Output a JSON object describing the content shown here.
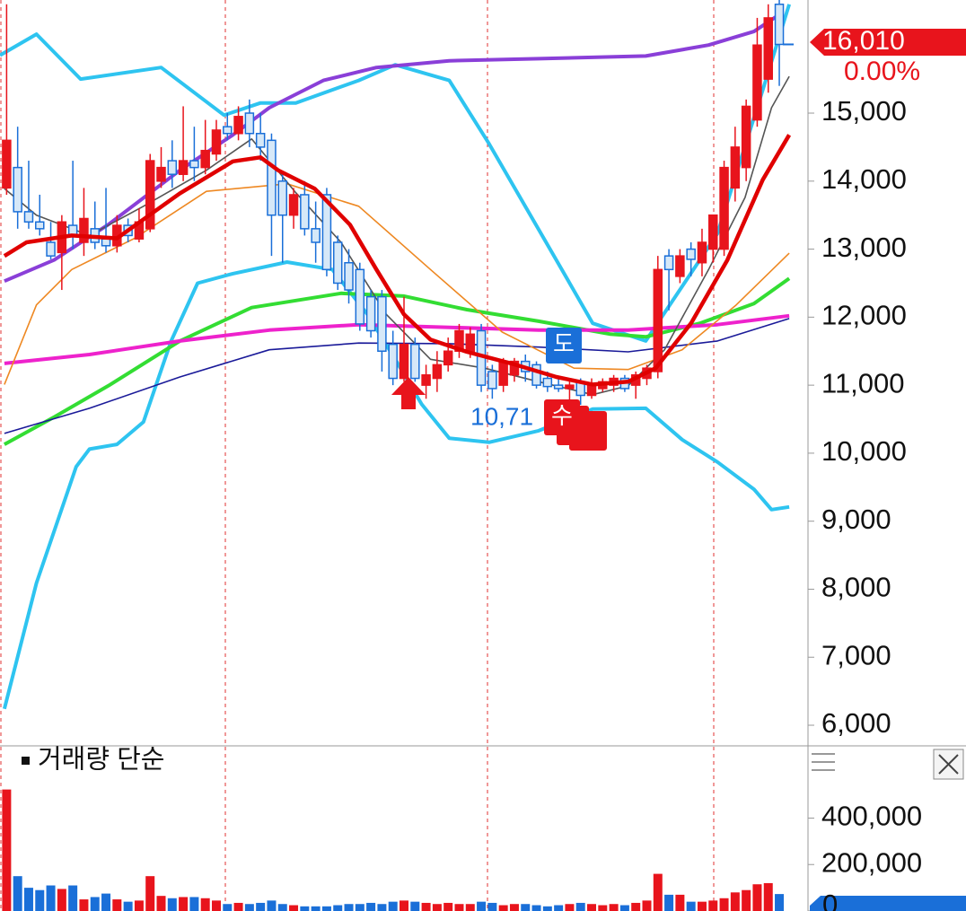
{
  "chart_data": [
    {
      "type": "candlestick",
      "xlim": [
        -0.6,
        72.6
      ],
      "ylim": [
        5710,
        16663
      ],
      "yticks": [
        {
          "value": 6000,
          "label": "6,000"
        },
        {
          "value": 7000,
          "label": "7,000"
        },
        {
          "value": 8000,
          "label": "8,000"
        },
        {
          "value": 9000,
          "label": "9,000"
        },
        {
          "value": 10000,
          "label": "10,000"
        },
        {
          "value": 11000,
          "label": "11,000"
        },
        {
          "value": 12000,
          "label": "12,000"
        },
        {
          "value": 13000,
          "label": "13,000"
        },
        {
          "value": 14000,
          "label": "14,000"
        },
        {
          "value": 15000,
          "label": "15,000"
        }
      ],
      "up_color": "#e8141c",
      "down_color": "#1a6fd8",
      "open": [
        13900,
        14200,
        13550,
        13400,
        13100,
        12950,
        13350,
        13100,
        13300,
        13150,
        13050,
        13350,
        13150,
        13300,
        14000,
        14300,
        14100,
        14300,
        14200,
        14400,
        14800,
        14700,
        15000,
        14700,
        14600,
        14000,
        13500,
        13800,
        13300,
        13800,
        13100,
        12800,
        12700,
        12300,
        12300,
        11600,
        11100,
        11600,
        11000,
        11100,
        11300,
        11500,
        11500,
        11800,
        11200,
        11000,
        11150,
        11350,
        11300,
        11100,
        11000,
        10950,
        11050,
        10850,
        10950,
        11000,
        11100,
        11000,
        11100,
        11200,
        12900,
        12600,
        13000,
        12800,
        13000,
        13000,
        13900,
        14200,
        14900,
        15500,
        16600
      ],
      "high": [
        16600,
        14800,
        14300,
        13800,
        13400,
        13500,
        14300,
        13900,
        13700,
        13900,
        13500,
        13450,
        13600,
        14400,
        14500,
        14600,
        15100,
        14800,
        14900,
        14900,
        15000,
        15100,
        15200,
        15000,
        14700,
        14100,
        13900,
        14000,
        13700,
        13900,
        13200,
        13000,
        12800,
        12400,
        12400,
        11800,
        12300,
        11700,
        11300,
        11500,
        11700,
        11900,
        11850,
        11900,
        11300,
        11400,
        11400,
        11450,
        11350,
        11200,
        11100,
        11100,
        11100,
        11100,
        11100,
        11150,
        11150,
        11200,
        11300,
        12900,
        13000,
        13000,
        13100,
        13300,
        13500,
        14300,
        14800,
        15200,
        16400,
        16600,
        16700
      ],
      "low": [
        13800,
        13300,
        13300,
        13200,
        12850,
        12400,
        13000,
        12900,
        13000,
        12950,
        12950,
        13100,
        13100,
        13250,
        13900,
        13900,
        14000,
        14000,
        14100,
        14300,
        14600,
        14600,
        14500,
        14300,
        12900,
        12800,
        13300,
        13200,
        12800,
        12600,
        12400,
        12200,
        11800,
        11700,
        11200,
        11000,
        11050,
        11050,
        10800,
        10900,
        11200,
        11400,
        11400,
        10900,
        10800,
        10900,
        11050,
        11050,
        10950,
        10900,
        10900,
        10750,
        10710,
        10800,
        10900,
        10900,
        10900,
        10800,
        11000,
        11100,
        12100,
        12500,
        12600,
        12600,
        12800,
        12900,
        13700,
        14000,
        14800,
        15300,
        15400
      ],
      "close": [
        14600,
        13550,
        13400,
        13300,
        12900,
        13400,
        13200,
        13450,
        13100,
        13050,
        13350,
        13200,
        13400,
        14300,
        14200,
        14100,
        14300,
        14200,
        14450,
        14750,
        14700,
        14950,
        14700,
        14500,
        13500,
        13500,
        13800,
        13300,
        13100,
        12700,
        12500,
        12400,
        11900,
        11800,
        11500,
        11100,
        11600,
        11100,
        11150,
        11300,
        11500,
        11800,
        11750,
        11000,
        10950,
        11350,
        11350,
        11200,
        11000,
        10980,
        10950,
        11000,
        10850,
        11000,
        11050,
        11100,
        10950,
        11150,
        11250,
        12700,
        12700,
        12900,
        12850,
        13100,
        13500,
        14200,
        14500,
        15100,
        16000,
        16400,
        16010
      ],
      "lines": [
        {
          "color": "#2ec4f0",
          "width": 4,
          "x": [
            -0.6,
            2.7,
            6.7,
            14,
            19.7,
            23,
            26.2,
            31.9,
            35.2,
            40.1,
            43.7,
            49.8,
            53.1,
            57.9,
            64.4,
            68.5,
            70.9
          ],
          "values": [
            15850,
            16160,
            15500,
            15670,
            14970,
            15150,
            15150,
            15480,
            15710,
            15480,
            14550,
            12840,
            11910,
            11650,
            13230,
            15340,
            16600
          ]
        },
        {
          "color": "#2ec4f0",
          "width": 4,
          "x": [
            -0.2,
            2.7,
            6.3,
            7.5,
            10,
            12.4,
            14.9,
            17.3,
            20.5,
            25.4,
            29.5,
            32.7,
            35.2,
            37.6,
            40.1,
            43.7,
            48.2,
            53.1,
            57.9,
            61.2,
            64.4,
            67.7,
            69.3,
            70.9
          ],
          "values": [
            6240,
            8090,
            9800,
            10060,
            10130,
            10460,
            11650,
            12500,
            12640,
            12810,
            12700,
            12040,
            11380,
            10720,
            10220,
            10160,
            10330,
            10650,
            10660,
            10200,
            9870,
            9470,
            9170,
            9210
          ]
        },
        {
          "color": "#8a3fd8",
          "width": 4,
          "x": [
            -0.2,
            4.3,
            9.2,
            15.7,
            20.5,
            23.8,
            28.7,
            33.5,
            40.1,
            48.2,
            57.9,
            63.6,
            67.7,
            70.1
          ],
          "values": [
            12530,
            12840,
            13360,
            14160,
            14680,
            15080,
            15480,
            15670,
            15770,
            15800,
            15840,
            16000,
            16200,
            16460
          ]
        },
        {
          "color": "#33dd33",
          "width": 4,
          "x": [
            -0.2,
            4.3,
            9.2,
            15.7,
            22.2,
            30.3,
            36,
            41.7,
            48.2,
            54.7,
            57.9,
            62.8,
            67.7,
            70.9
          ],
          "values": [
            10130,
            10530,
            10990,
            11650,
            12140,
            12350,
            12310,
            12110,
            11940,
            11750,
            11710,
            11910,
            12200,
            12570
          ]
        },
        {
          "color": "#ee22cc",
          "width": 4,
          "x": [
            -0.2,
            7.5,
            15.7,
            23.8,
            31.9,
            40.1,
            48.2,
            56.3,
            64.4,
            70.9
          ],
          "values": [
            11320,
            11450,
            11650,
            11810,
            11890,
            11850,
            11810,
            11810,
            11890,
            12020
          ]
        },
        {
          "color": "#1a1a99",
          "width": 1.6,
          "x": [
            -0.2,
            7.5,
            15.7,
            23.8,
            31.9,
            40.1,
            48.2,
            56.3,
            64.4,
            70.9
          ],
          "values": [
            10290,
            10660,
            11120,
            11520,
            11620,
            11610,
            11560,
            11490,
            11650,
            11980
          ]
        },
        {
          "color": "#ee8822",
          "width": 1.6,
          "x": [
            -0.2,
            2.7,
            5.9,
            11.6,
            18.1,
            25.4,
            31.9,
            38.4,
            44.9,
            51.4,
            56.3,
            61.2,
            66.1,
            70.9
          ],
          "values": [
            11010,
            12180,
            12700,
            13160,
            13850,
            13960,
            13630,
            12700,
            11780,
            11250,
            11230,
            11520,
            12180,
            12940
          ]
        },
        {
          "color": "#555555",
          "width": 1.6,
          "x": [
            -0.2,
            2.7,
            7.5,
            12.4,
            18.1,
            22.2,
            26.2,
            30.3,
            34.4,
            38.4,
            43.3,
            48.2,
            53.1,
            56.3,
            59.6,
            63.6,
            66.9,
            69.3,
            70.9
          ],
          "values": [
            13890,
            13500,
            13200,
            13630,
            14160,
            14620,
            13830,
            13100,
            12040,
            11380,
            11250,
            11050,
            10860,
            10990,
            11520,
            12700,
            13760,
            15080,
            15540
          ]
        },
        {
          "color": "#e00000",
          "width": 4.5,
          "x": [
            -0.2,
            1.8,
            5.9,
            10,
            15.7,
            20.5,
            23,
            24.6,
            27.9,
            31.1,
            33.5,
            36,
            38.4,
            41.7,
            45.7,
            49.8,
            53.1,
            56.3,
            58.8,
            62,
            65.3,
            68.5,
            70.9
          ],
          "values": [
            12900,
            13100,
            13200,
            13160,
            13820,
            14290,
            14350,
            14160,
            13890,
            13360,
            12700,
            12040,
            11670,
            11490,
            11320,
            11120,
            11010,
            11050,
            11250,
            11910,
            12840,
            14020,
            14680
          ]
        }
      ],
      "last_price": {
        "value": 16010,
        "label": "16,010"
      },
      "change": {
        "value": 0,
        "label": "0.00%"
      },
      "annotations": [
        "도",
        "수",
        "10,71"
      ]
    },
    {
      "type": "bar",
      "title": "거래량 단순",
      "ylim": [
        0,
        707000
      ],
      "yticks": [
        {
          "value": 400000,
          "label": "400,000"
        },
        {
          "value": 200000,
          "label": "200,000"
        },
        0
      ],
      "values": [
        523000,
        150000,
        100000,
        90000,
        110000,
        95000,
        110000,
        50000,
        60000,
        75000,
        50000,
        40000,
        45000,
        150000,
        65000,
        55000,
        60000,
        60000,
        55000,
        45000,
        30000,
        35000,
        30000,
        35000,
        45000,
        30000,
        25000,
        20000,
        20000,
        20000,
        25000,
        30000,
        30000,
        35000,
        30000,
        40000,
        45000,
        40000,
        35000,
        30000,
        35000,
        30000,
        30000,
        40000,
        35000,
        25000,
        30000,
        30000,
        25000,
        20000,
        25000,
        30000,
        35000,
        30000,
        25000,
        30000,
        25000,
        35000,
        45000,
        160000,
        70000,
        70000,
        40000,
        40000,
        45000,
        55000,
        80000,
        90000,
        115000,
        120000,
        73000
      ]
    }
  ]
}
